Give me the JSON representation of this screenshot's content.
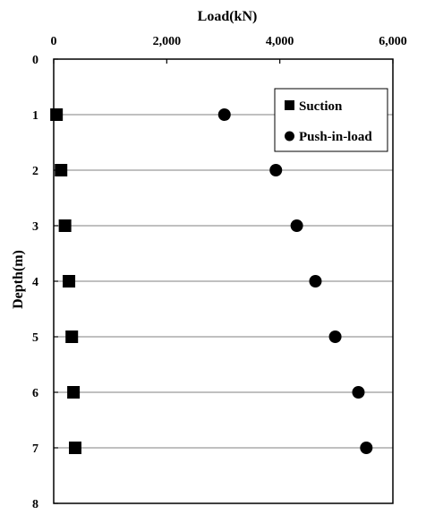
{
  "chart_data": {
    "type": "scatter",
    "title": "",
    "xlabel": "Load(kN)",
    "ylabel": "Depth(m)",
    "xlim": [
      0,
      6000
    ],
    "ylim": [
      0,
      8
    ],
    "y_inverted": true,
    "x_axis_position": "top",
    "x_ticks": [
      0,
      2000,
      4000,
      6000
    ],
    "x_tick_labels": [
      "0",
      "2,000",
      "4,000",
      "6,000"
    ],
    "y_ticks": [
      0,
      1,
      2,
      3,
      4,
      5,
      6,
      7,
      8
    ],
    "y_tick_labels": [
      "0",
      "1",
      "2",
      "3",
      "4",
      "5",
      "6",
      "7",
      "8"
    ],
    "grid": "horizontal lines at depths 1-7",
    "legend_position": "top-right",
    "series": [
      {
        "name": "Suction",
        "marker": "square",
        "color": "#000000",
        "points": [
          {
            "x": 50,
            "y": 1
          },
          {
            "x": 130,
            "y": 2
          },
          {
            "x": 200,
            "y": 3
          },
          {
            "x": 270,
            "y": 4
          },
          {
            "x": 320,
            "y": 5
          },
          {
            "x": 350,
            "y": 6
          },
          {
            "x": 380,
            "y": 7
          }
        ]
      },
      {
        "name": "Push-in-load",
        "marker": "circle",
        "color": "#000000",
        "points": [
          {
            "x": 3020,
            "y": 1
          },
          {
            "x": 3930,
            "y": 2
          },
          {
            "x": 4300,
            "y": 3
          },
          {
            "x": 4630,
            "y": 4
          },
          {
            "x": 4980,
            "y": 5
          },
          {
            "x": 5390,
            "y": 6
          },
          {
            "x": 5530,
            "y": 7
          }
        ]
      }
    ]
  }
}
